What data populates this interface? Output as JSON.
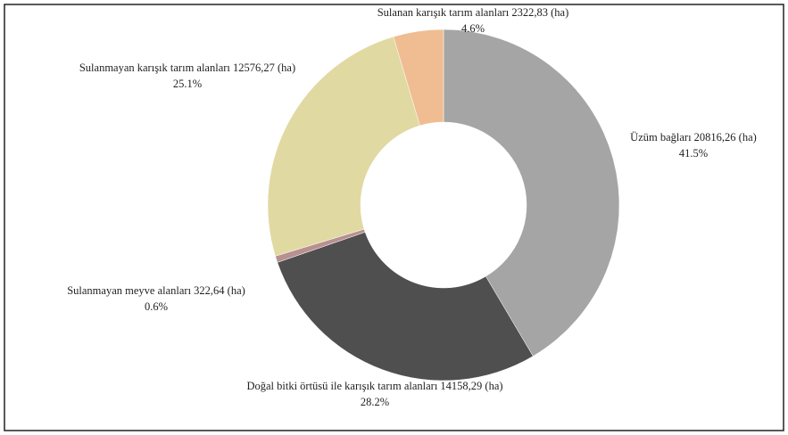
{
  "chart_data": {
    "type": "donut",
    "categories": [
      "Üzüm bağları 20816,26 (ha)",
      "Doğal bitki örtüsü ile karışık tarım alanları 14158,29 (ha)",
      "Sulanmayan meyve alanları 322,64 (ha)",
      "Sulanmayan karışık tarım alanları 12576,27 (ha)",
      "Sulanan karışık tarım alanları 2322,83 (ha)"
    ],
    "values": [
      41.5,
      28.2,
      0.6,
      25.1,
      4.6
    ],
    "value_labels": [
      "41.5%",
      "28.2%",
      "0.6%",
      "25.1%",
      "4.6%"
    ],
    "colors": [
      "#a5a5a5",
      "#4f4f4f",
      "#b89090",
      "#e1d9a2",
      "#efbd91"
    ]
  }
}
